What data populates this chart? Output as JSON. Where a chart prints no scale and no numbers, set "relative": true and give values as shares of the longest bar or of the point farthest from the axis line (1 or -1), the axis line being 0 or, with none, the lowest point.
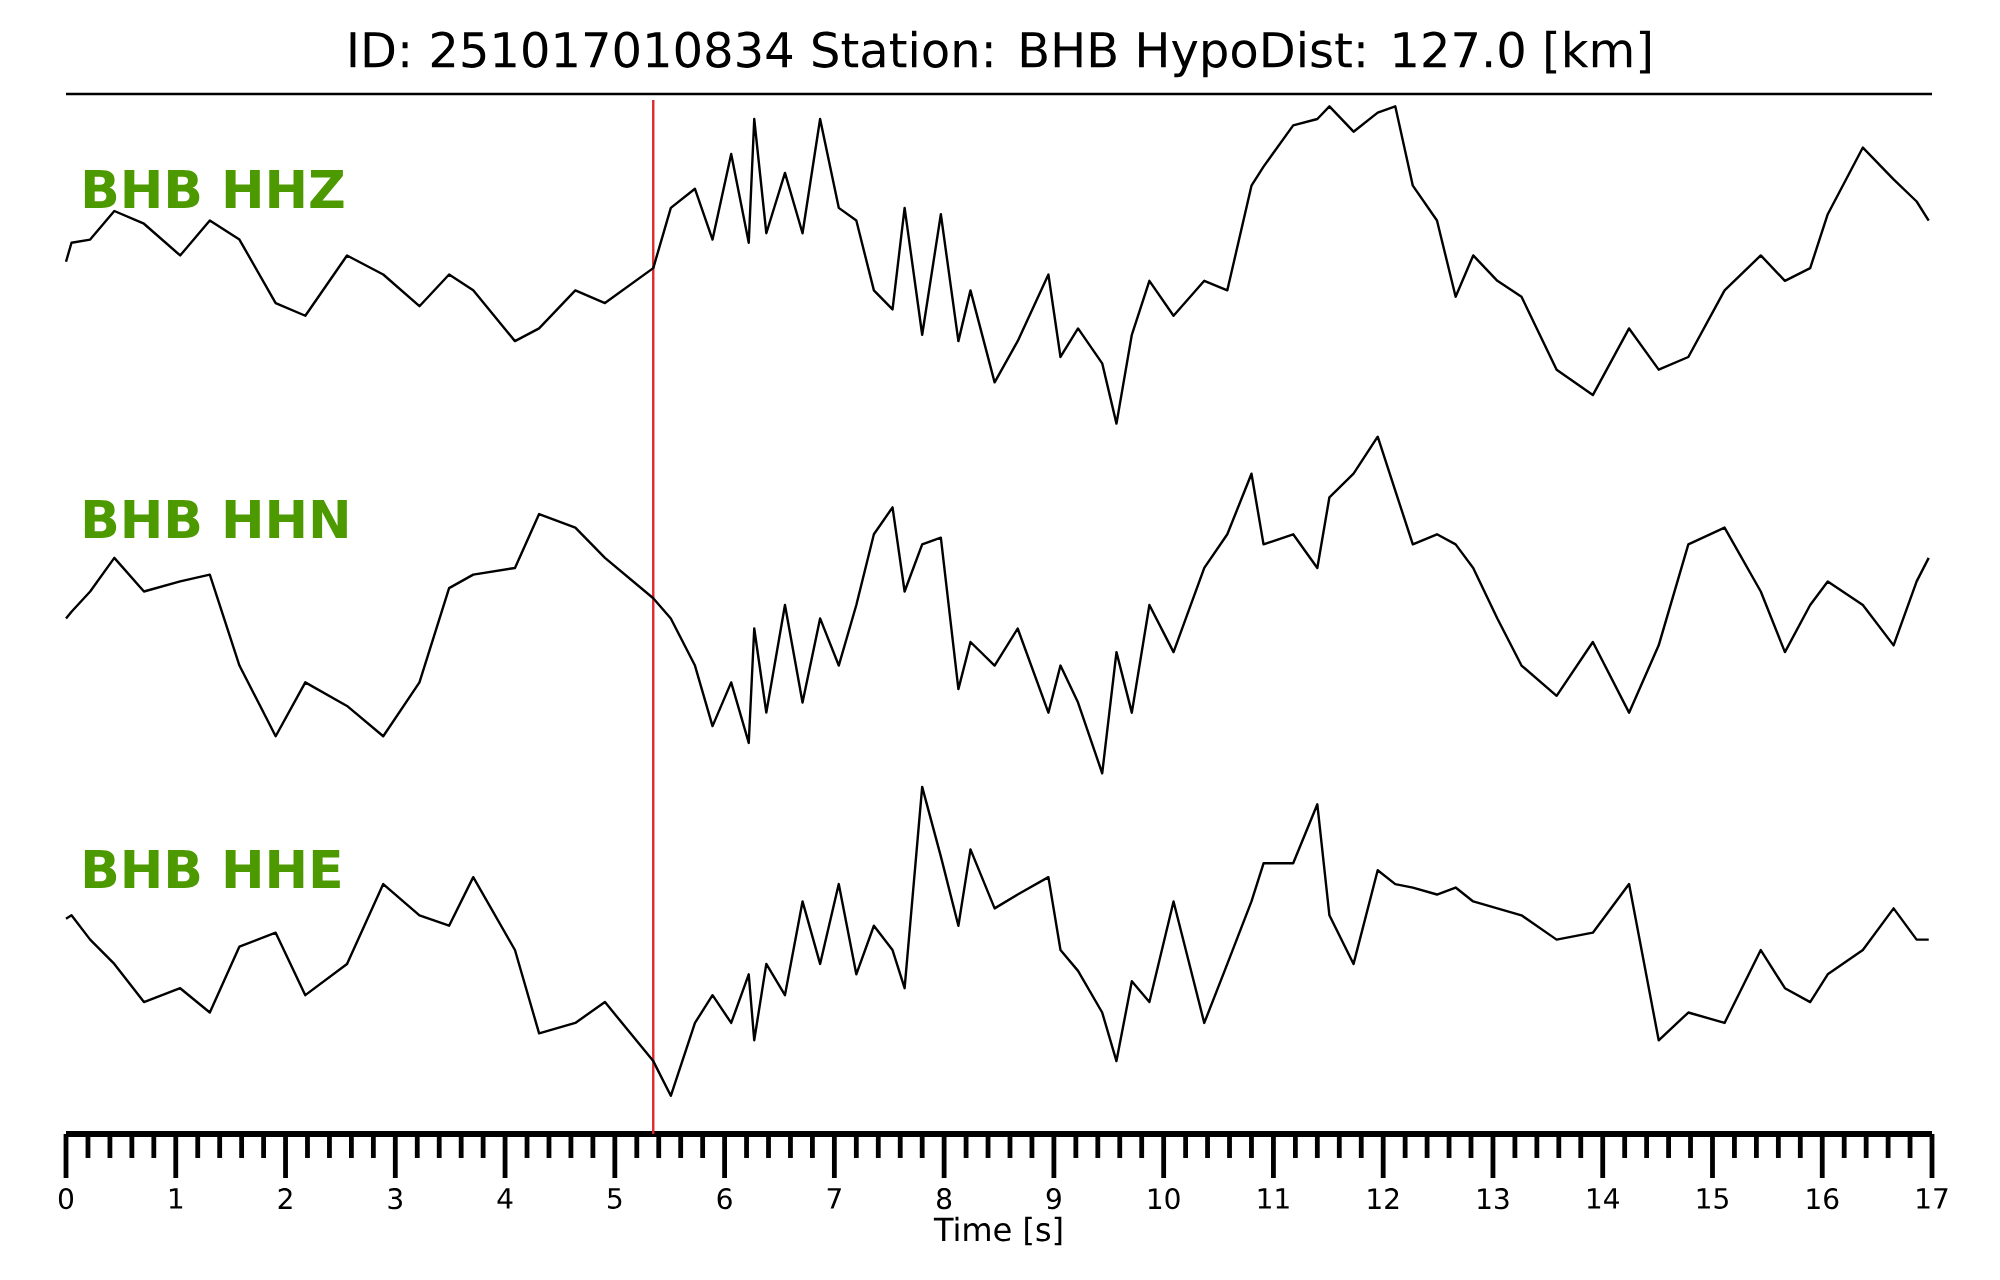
{
  "chart_data": [
    {
      "type": "line",
      "relative": true,
      "title": "ID: 251017010834   Station: BHB   HypoDist:   127.0 [km]",
      "annotations": [
        "BHB HHZ"
      ],
      "xlim": [
        0,
        17
      ],
      "tick_labels": false,
      "x": [
        0,
        0.05,
        0.22,
        0.44,
        0.71,
        1.04,
        1.31,
        1.58,
        1.91,
        2.18,
        2.56,
        2.89,
        3.22,
        3.49,
        3.71,
        4.09,
        4.31,
        4.64,
        4.91,
        5.35,
        5.51,
        5.73,
        5.89,
        6.06,
        6.22,
        6.27,
        6.38,
        6.55,
        6.71,
        6.87,
        7.04,
        7.2,
        7.36,
        7.53,
        7.64,
        7.8,
        7.97,
        8.13,
        8.24,
        8.46,
        8.67,
        8.95,
        9.06,
        9.22,
        9.44,
        9.57,
        9.71,
        9.87,
        10.09,
        10.37,
        10.58,
        10.8,
        10.91,
        11.18,
        11.4,
        11.51,
        11.73,
        11.95,
        12.11,
        12.27,
        12.49,
        12.66,
        12.82,
        13.04,
        13.26,
        13.58,
        13.91,
        14.24,
        14.51,
        14.78,
        15.11,
        15.44,
        15.66,
        15.89,
        16.05,
        16.37,
        16.65,
        16.86,
        16.97
      ],
      "series": [
        {
          "color": "#000000",
          "values": [
            0.51,
            0.57,
            0.58,
            0.67,
            0.63,
            0.53,
            0.64,
            0.58,
            0.38,
            0.34,
            0.53,
            0.47,
            0.37,
            0.47,
            0.42,
            0.26,
            0.3,
            0.42,
            0.38,
            0.49,
            0.68,
            0.74,
            0.58,
            0.85,
            0.57,
            0.96,
            0.6,
            0.79,
            0.6,
            0.96,
            0.68,
            0.64,
            0.42,
            0.36,
            0.68,
            0.28,
            0.66,
            0.26,
            0.42,
            0.13,
            0.26,
            0.47,
            0.21,
            0.3,
            0.19,
            0,
            0.28,
            0.45,
            0.34,
            0.45,
            0.42,
            0.75,
            0.81,
            0.94,
            0.96,
            1,
            0.92,
            0.98,
            1,
            0.75,
            0.64,
            0.4,
            0.53,
            0.45,
            0.4,
            0.17,
            0.09,
            0.3,
            0.17,
            0.21,
            0.42,
            0.53,
            0.45,
            0.49,
            0.66,
            0.87,
            0.77,
            0.7,
            0.64
          ]
        }
      ],
      "ref_lines": [
        {
          "axis": "x",
          "value": 5.35,
          "color": "#e0282e"
        }
      ]
    },
    {
      "type": "line",
      "relative": true,
      "annotations": [
        "BHB HHN"
      ],
      "xlim": [
        0,
        17
      ],
      "tick_labels": false,
      "x": [
        0,
        0.05,
        0.22,
        0.44,
        0.71,
        1.04,
        1.31,
        1.58,
        1.91,
        2.18,
        2.56,
        2.89,
        3.22,
        3.49,
        3.71,
        4.09,
        4.31,
        4.64,
        4.91,
        5.35,
        5.51,
        5.73,
        5.89,
        6.06,
        6.22,
        6.27,
        6.38,
        6.55,
        6.71,
        6.87,
        7.04,
        7.2,
        7.36,
        7.53,
        7.64,
        7.8,
        7.97,
        8.13,
        8.24,
        8.46,
        8.67,
        8.95,
        9.06,
        9.22,
        9.44,
        9.57,
        9.71,
        9.87,
        10.09,
        10.37,
        10.58,
        10.8,
        10.91,
        11.18,
        11.4,
        11.51,
        11.73,
        11.95,
        12.11,
        12.27,
        12.49,
        12.66,
        12.82,
        13.04,
        13.26,
        13.58,
        13.91,
        14.24,
        14.51,
        14.78,
        15.11,
        15.44,
        15.66,
        15.89,
        16.05,
        16.37,
        16.65,
        16.86,
        16.97
      ],
      "series": [
        {
          "color": "#000000",
          "values": [
            0.46,
            0.48,
            0.54,
            0.64,
            0.54,
            0.57,
            0.59,
            0.32,
            0.11,
            0.27,
            0.2,
            0.11,
            0.27,
            0.55,
            0.59,
            0.61,
            0.77,
            0.73,
            0.64,
            0.52,
            0.46,
            0.32,
            0.14,
            0.27,
            0.09,
            0.43,
            0.18,
            0.5,
            0.21,
            0.46,
            0.32,
            0.5,
            0.71,
            0.79,
            0.54,
            0.68,
            0.7,
            0.25,
            0.39,
            0.32,
            0.43,
            0.18,
            0.32,
            0.21,
            0,
            0.36,
            0.18,
            0.5,
            0.36,
            0.61,
            0.71,
            0.89,
            0.68,
            0.71,
            0.61,
            0.82,
            0.89,
            1,
            0.84,
            0.68,
            0.71,
            0.68,
            0.61,
            0.46,
            0.32,
            0.23,
            0.39,
            0.18,
            0.38,
            0.68,
            0.73,
            0.54,
            0.36,
            0.5,
            0.57,
            0.5,
            0.38,
            0.57,
            0.64
          ]
        }
      ],
      "ref_lines": [
        {
          "axis": "x",
          "value": 5.35,
          "color": "#e0282e"
        }
      ]
    },
    {
      "type": "line",
      "relative": true,
      "annotations": [
        "BHB HHE"
      ],
      "xlabel": "Time [s]",
      "xlim": [
        0,
        17
      ],
      "tick_labels": "x",
      "xticks": [
        0,
        {
          "value": 0.2,
          "label": null
        },
        {
          "value": 0.4,
          "label": null
        },
        {
          "value": 0.6,
          "label": null
        },
        {
          "value": 0.8,
          "label": null
        },
        1,
        {
          "value": 1.2,
          "label": null
        },
        {
          "value": 1.4,
          "label": null
        },
        {
          "value": 1.6,
          "label": null
        },
        {
          "value": 1.8,
          "label": null
        },
        2,
        {
          "value": 2.2,
          "label": null
        },
        {
          "value": 2.4,
          "label": null
        },
        {
          "value": 2.6,
          "label": null
        },
        {
          "value": 2.8,
          "label": null
        },
        3,
        {
          "value": 3.2,
          "label": null
        },
        {
          "value": 3.4,
          "label": null
        },
        {
          "value": 3.6,
          "label": null
        },
        {
          "value": 3.8,
          "label": null
        },
        4,
        {
          "value": 4.2,
          "label": null
        },
        {
          "value": 4.4,
          "label": null
        },
        {
          "value": 4.6,
          "label": null
        },
        {
          "value": 4.8,
          "label": null
        },
        5,
        {
          "value": 5.2,
          "label": null
        },
        {
          "value": 5.4,
          "label": null
        },
        {
          "value": 5.6,
          "label": null
        },
        {
          "value": 5.8,
          "label": null
        },
        6,
        {
          "value": 6.2,
          "label": null
        },
        {
          "value": 6.4,
          "label": null
        },
        {
          "value": 6.6,
          "label": null
        },
        {
          "value": 6.8,
          "label": null
        },
        7,
        {
          "value": 7.2,
          "label": null
        },
        {
          "value": 7.4,
          "label": null
        },
        {
          "value": 7.6,
          "label": null
        },
        {
          "value": 7.8,
          "label": null
        },
        8,
        {
          "value": 8.2,
          "label": null
        },
        {
          "value": 8.4,
          "label": null
        },
        {
          "value": 8.6,
          "label": null
        },
        {
          "value": 8.8,
          "label": null
        },
        9,
        {
          "value": 9.2,
          "label": null
        },
        {
          "value": 9.4,
          "label": null
        },
        {
          "value": 9.6,
          "label": null
        },
        {
          "value": 9.8,
          "label": null
        },
        10,
        {
          "value": 10.2,
          "label": null
        },
        {
          "value": 10.4,
          "label": null
        },
        {
          "value": 10.6,
          "label": null
        },
        {
          "value": 10.8,
          "label": null
        },
        11,
        {
          "value": 11.2,
          "label": null
        },
        {
          "value": 11.4,
          "label": null
        },
        {
          "value": 11.6,
          "label": null
        },
        {
          "value": 11.8,
          "label": null
        },
        12,
        {
          "value": 12.2,
          "label": null
        },
        {
          "value": 12.4,
          "label": null
        },
        {
          "value": 12.6,
          "label": null
        },
        {
          "value": 12.8,
          "label": null
        },
        13,
        {
          "value": 13.2,
          "label": null
        },
        {
          "value": 13.4,
          "label": null
        },
        {
          "value": 13.6,
          "label": null
        },
        {
          "value": 13.8,
          "label": null
        },
        14,
        {
          "value": 14.2,
          "label": null
        },
        {
          "value": 14.4,
          "label": null
        },
        {
          "value": 14.6,
          "label": null
        },
        {
          "value": 14.8,
          "label": null
        },
        15,
        {
          "value": 15.2,
          "label": null
        },
        {
          "value": 15.4,
          "label": null
        },
        {
          "value": 15.6,
          "label": null
        },
        {
          "value": 15.8,
          "label": null
        },
        16,
        {
          "value": 16.2,
          "label": null
        },
        {
          "value": 16.4,
          "label": null
        },
        {
          "value": 16.6,
          "label": null
        },
        {
          "value": 16.8,
          "label": null
        },
        17
      ],
      "x": [
        0,
        0.05,
        0.22,
        0.44,
        0.71,
        1.04,
        1.31,
        1.58,
        1.91,
        2.18,
        2.56,
        2.89,
        3.22,
        3.49,
        3.71,
        4.09,
        4.31,
        4.64,
        4.91,
        5.35,
        5.51,
        5.73,
        5.89,
        6.06,
        6.22,
        6.27,
        6.38,
        6.55,
        6.71,
        6.87,
        7.04,
        7.2,
        7.36,
        7.53,
        7.64,
        7.8,
        7.97,
        8.13,
        8.24,
        8.46,
        8.67,
        8.95,
        9.06,
        9.22,
        9.44,
        9.57,
        9.71,
        9.87,
        10.09,
        10.37,
        10.58,
        10.8,
        10.91,
        11.18,
        11.4,
        11.51,
        11.73,
        11.95,
        12.11,
        12.27,
        12.49,
        12.66,
        12.82,
        13.04,
        13.26,
        13.58,
        13.91,
        14.24,
        14.51,
        14.78,
        15.11,
        15.44,
        15.66,
        15.89,
        16.05,
        16.37,
        16.65,
        16.86,
        16.97
      ],
      "series": [
        {
          "color": "#000000",
          "values": [
            0.62,
            0.63,
            0.56,
            0.49,
            0.38,
            0.42,
            0.35,
            0.54,
            0.58,
            0.4,
            0.49,
            0.72,
            0.63,
            0.6,
            0.74,
            0.53,
            0.29,
            0.32,
            0.38,
            0.21,
            0.11,
            0.32,
            0.4,
            0.32,
            0.46,
            0.27,
            0.49,
            0.4,
            0.67,
            0.49,
            0.72,
            0.46,
            0.6,
            0.53,
            0.42,
            1,
            0.8,
            0.6,
            0.82,
            0.65,
            0.69,
            0.74,
            0.53,
            0.47,
            0.35,
            0.21,
            0.44,
            0.38,
            0.67,
            0.32,
            0.49,
            0.67,
            0.78,
            0.78,
            0.95,
            0.63,
            0.49,
            0.76,
            0.72,
            0.71,
            0.69,
            0.71,
            0.67,
            0.65,
            0.63,
            0.56,
            0.58,
            0.72,
            0.27,
            0.35,
            0.32,
            0.53,
            0.42,
            0.38,
            0.46,
            0.53,
            0.65,
            0.56,
            0.56
          ]
        }
      ],
      "ref_lines": [
        {
          "axis": "x",
          "value": 5.35,
          "color": "#e0282e"
        }
      ]
    }
  ]
}
